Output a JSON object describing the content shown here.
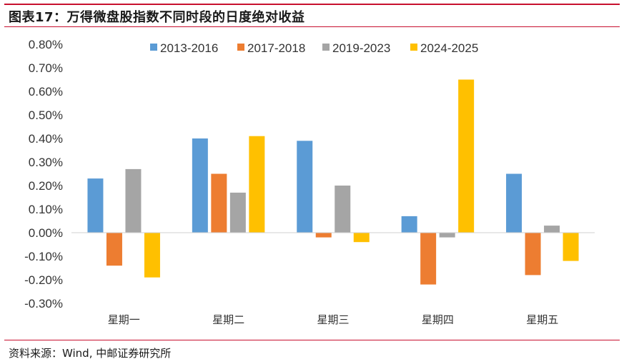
{
  "title": "图表17：万得微盘股指数不同时段的日度绝对收益",
  "source": "资料来源：Wind, 中邮证券研究所",
  "chart_data": {
    "type": "bar",
    "title": "图表17：万得微盘股指数不同时段的日度绝对收益",
    "categories": [
      "星期一",
      "星期二",
      "星期三",
      "星期四",
      "星期五"
    ],
    "series": [
      {
        "name": "2013-2016",
        "color": "#5b9bd5",
        "values": [
          0.23,
          0.4,
          0.39,
          0.07,
          0.25
        ]
      },
      {
        "name": "2017-2018",
        "color": "#ed7d31",
        "values": [
          -0.14,
          0.25,
          -0.02,
          -0.22,
          -0.18
        ]
      },
      {
        "name": "2019-2023",
        "color": "#a5a5a5",
        "values": [
          0.27,
          0.17,
          0.2,
          -0.02,
          0.03
        ]
      },
      {
        "name": "2024-2025",
        "color": "#ffc000",
        "values": [
          -0.19,
          0.41,
          -0.04,
          0.65,
          -0.12
        ]
      }
    ],
    "ylim": [
      -0.3,
      0.8
    ],
    "yticks": [
      "-0.30%",
      "-0.20%",
      "-0.10%",
      "0.00%",
      "0.10%",
      "0.20%",
      "0.30%",
      "0.40%",
      "0.50%",
      "0.60%",
      "0.70%",
      "0.80%"
    ],
    "xlabel": "",
    "ylabel": "",
    "grid": false,
    "legend": "top"
  }
}
